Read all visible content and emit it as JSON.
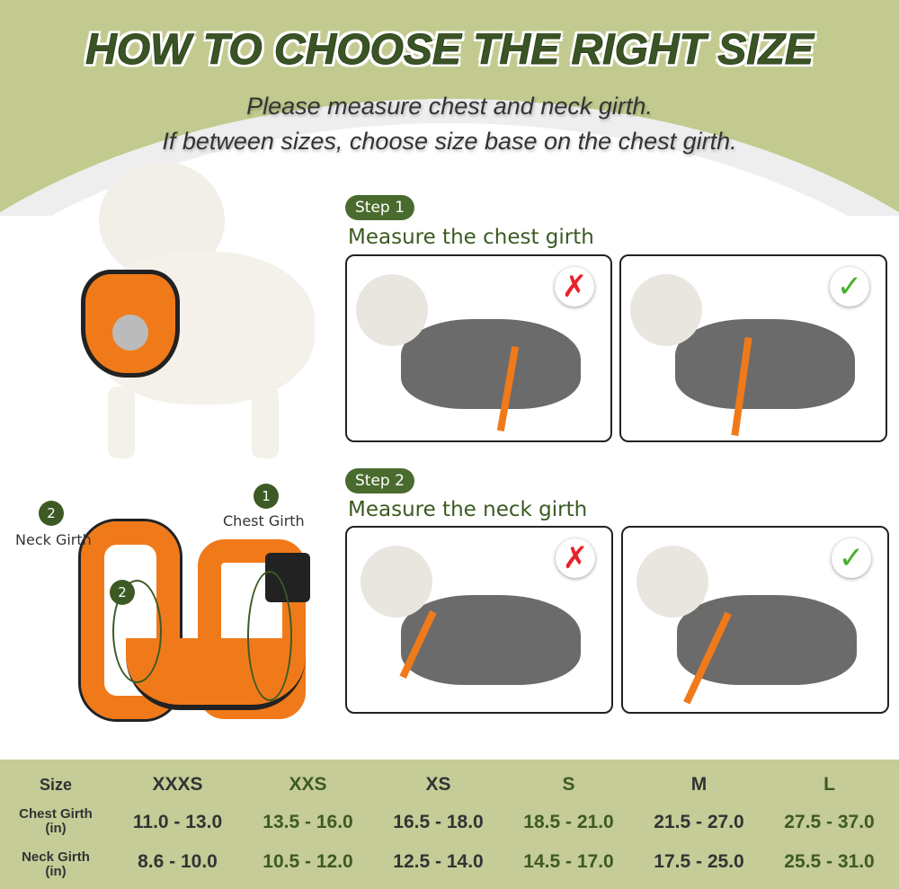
{
  "title": "HOW TO CHOOSE THE RIGHT SIZE",
  "subtitle": [
    "Please measure chest and neck girth.",
    "If between sizes, choose size base on the chest girth."
  ],
  "steps": [
    {
      "badge": "Step 1",
      "text": "Measure the chest girth",
      "wrong_icon": "cross-icon",
      "right_icon": "check-icon"
    },
    {
      "badge": "Step 2",
      "text": "Measure the neck girth",
      "wrong_icon": "cross-icon",
      "right_icon": "check-icon"
    }
  ],
  "harness": {
    "label1_num": "1",
    "label1": "Chest Girth",
    "label2_num": "2",
    "label2": "Neck Girth",
    "inner_num": "2"
  },
  "colors": {
    "accent_green": "#3d5a25",
    "background_green": "#c3ca8f",
    "strap_orange": "#f07a1a",
    "wrong": "#e8212b",
    "right": "#47b02a"
  },
  "size_table": {
    "row_headers": [
      "Size",
      "Chest Girth\n(in)",
      "Neck Girth\n(in)"
    ],
    "sizes": [
      "XXXS",
      "XXS",
      "XS",
      "S",
      "M",
      "L"
    ],
    "chest": [
      "11.0 - 13.0",
      "13.5 - 16.0",
      "16.5 - 18.0",
      "18.5 - 21.0",
      "21.5 - 27.0",
      "27.5 - 37.0"
    ],
    "neck": [
      "8.6 - 10.0",
      "10.5 - 12.0",
      "12.5 - 14.0",
      "14.5 - 17.0",
      "17.5 - 25.0",
      "25.5 - 31.0"
    ]
  }
}
